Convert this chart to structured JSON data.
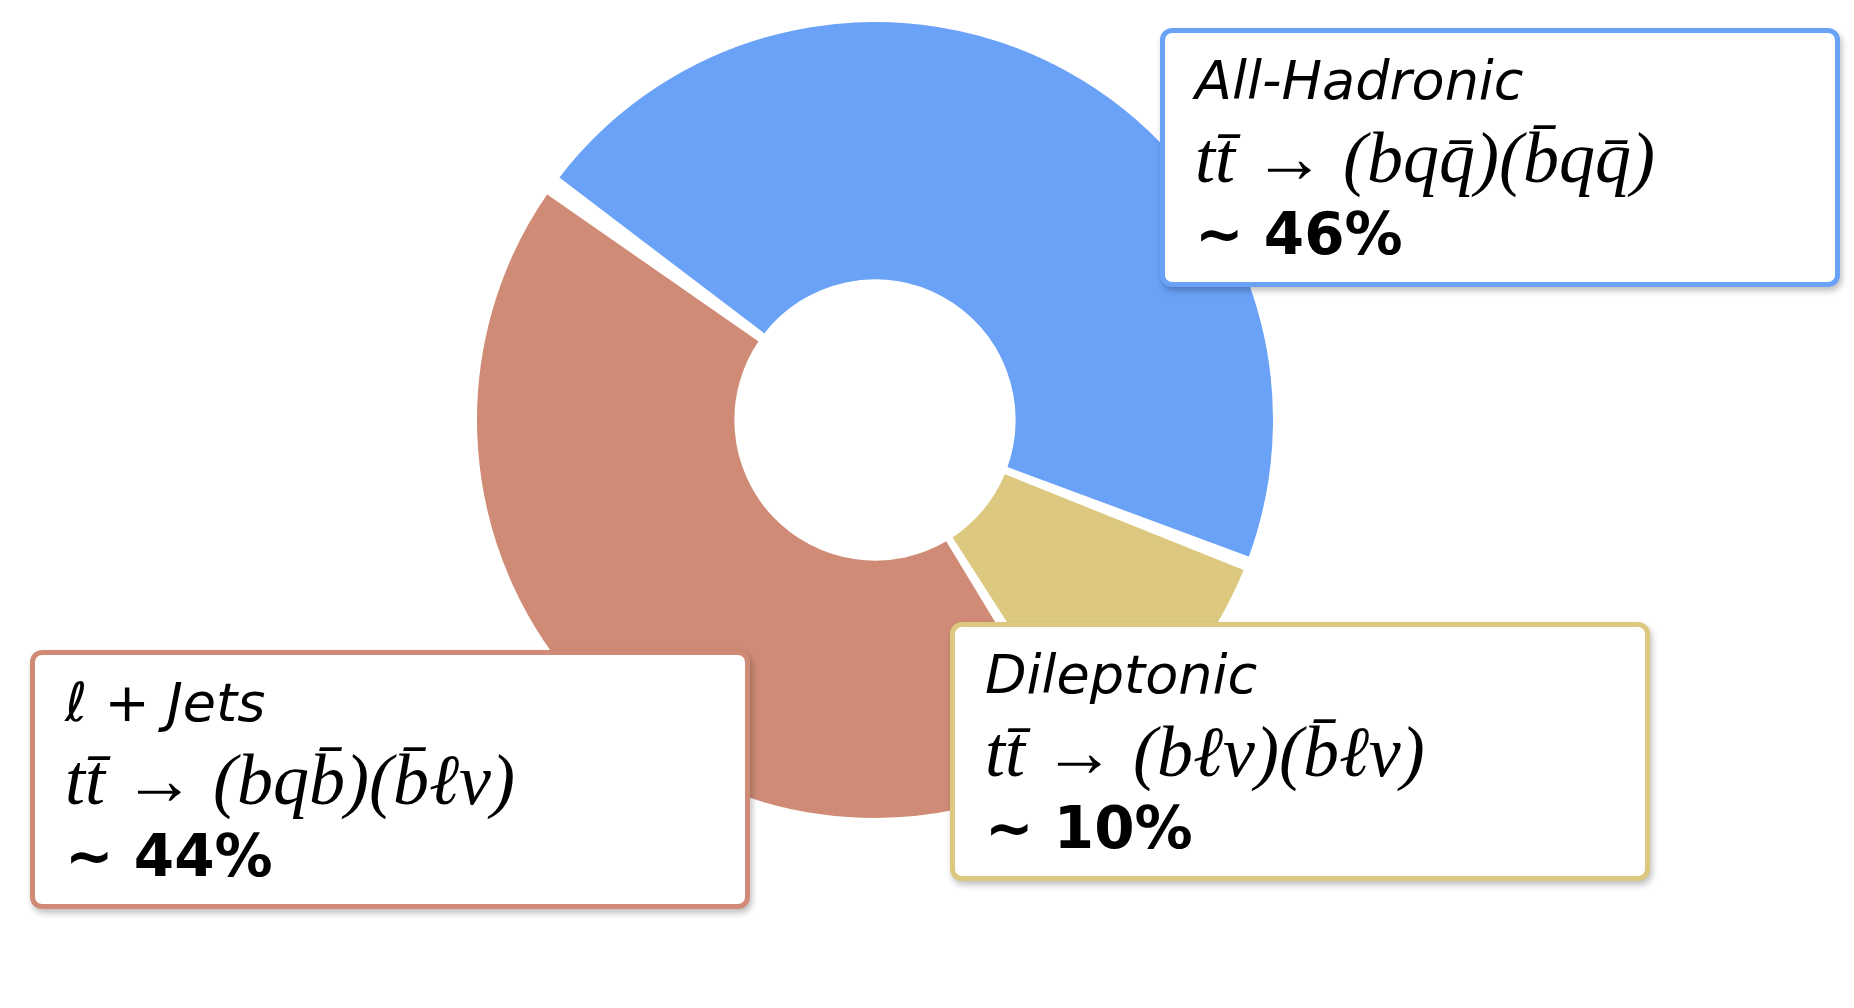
{
  "chart_data": {
    "type": "donut",
    "categories": [
      "All-Hadronic",
      "Dileptonic",
      "ℓ + Jets"
    ],
    "values": [
      46,
      10,
      44
    ],
    "colors": [
      "#6aa2f8",
      "#dcc87e",
      "#d08b76"
    ],
    "value_labels": [
      "~ 46%",
      "~ 10%",
      "~ 44%"
    ],
    "annotations": [
      "tt̄ → (bqq̄)(b̄qq̄)",
      "tt̄ → (bℓν)(b̄ℓν)",
      "tt̄ → (bqb̄)(b̄ℓν)"
    ],
    "legend": false
  }
}
